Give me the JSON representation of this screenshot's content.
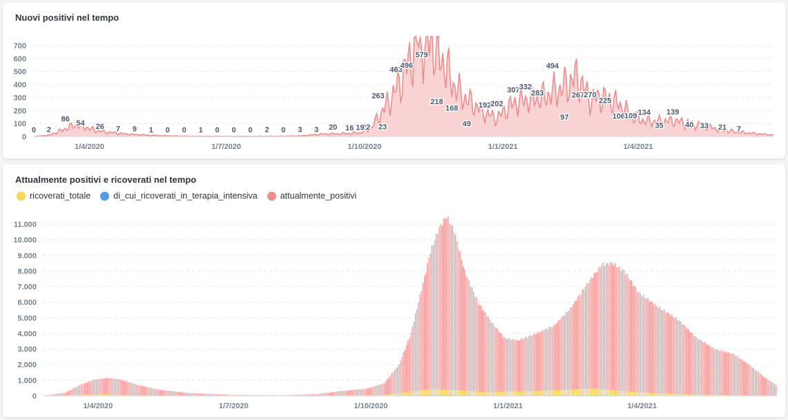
{
  "colors": {
    "ricoverati": "#f9d45c",
    "terapia": "#509ee3",
    "positivi": "#ef8c8c",
    "positivi_fill": "#f9d3d3",
    "grid": "#e8eaed"
  },
  "chart_data": [
    {
      "type": "area",
      "title": "Nuovi positivi nel tempo",
      "x_range": [
        "2020-02-24",
        "2021-06-30"
      ],
      "ylim": [
        0,
        700
      ],
      "y_ticks": [
        "0",
        "100",
        "200",
        "300",
        "400",
        "500",
        "600",
        "700"
      ],
      "x_ticks": [
        "1/4/2020",
        "1/7/2020",
        "1/10/2020",
        "1/1/2021",
        "1/4/2021"
      ],
      "grid": true,
      "series": [
        {
          "keypoints": [
            [
              "2020-02-24",
              0
            ],
            [
              "2020-03-05",
              10
            ],
            [
              "2020-03-12",
              40
            ],
            [
              "2020-03-18",
              70
            ],
            [
              "2020-03-22",
              86
            ],
            [
              "2020-03-27",
              85
            ],
            [
              "2020-04-01",
              60
            ],
            [
              "2020-04-08",
              40
            ],
            [
              "2020-04-20",
              25
            ],
            [
              "2020-05-01",
              15
            ],
            [
              "2020-05-20",
              6
            ],
            [
              "2020-06-10",
              2
            ],
            [
              "2020-07-15",
              1
            ],
            [
              "2020-08-05",
              2
            ],
            [
              "2020-08-20",
              5
            ],
            [
              "2020-09-01",
              18
            ],
            [
              "2020-09-15",
              22
            ],
            [
              "2020-09-28",
              28
            ],
            [
              "2020-10-05",
              60
            ],
            [
              "2020-10-12",
              180
            ],
            [
              "2020-10-19",
              300
            ],
            [
              "2020-10-26",
              450
            ],
            [
              "2020-11-01",
              620
            ],
            [
              "2020-11-05",
              740
            ],
            [
              "2020-11-10",
              700
            ],
            [
              "2020-11-14",
              760
            ],
            [
              "2020-11-18",
              650
            ],
            [
              "2020-11-23",
              560
            ],
            [
              "2020-11-28",
              420
            ],
            [
              "2020-12-04",
              320
            ],
            [
              "2020-12-12",
              250
            ],
            [
              "2020-12-20",
              180
            ],
            [
              "2020-12-28",
              140
            ],
            [
              "2021-01-05",
              230
            ],
            [
              "2021-01-12",
              270
            ],
            [
              "2021-01-20",
              290
            ],
            [
              "2021-01-27",
              300
            ],
            [
              "2021-02-03",
              340
            ],
            [
              "2021-02-08",
              360
            ],
            [
              "2021-02-15",
              420
            ],
            [
              "2021-02-20",
              460
            ],
            [
              "2021-02-26",
              320
            ],
            [
              "2021-03-01",
              280
            ],
            [
              "2021-03-07",
              300
            ],
            [
              "2021-03-14",
              280
            ],
            [
              "2021-03-21",
              230
            ],
            [
              "2021-03-28",
              150
            ],
            [
              "2021-04-05",
              120
            ],
            [
              "2021-04-15",
              115
            ],
            [
              "2021-04-25",
              120
            ],
            [
              "2021-05-05",
              100
            ],
            [
              "2021-05-15",
              80
            ],
            [
              "2021-05-25",
              55
            ],
            [
              "2021-06-05",
              35
            ],
            [
              "2021-06-15",
              25
            ],
            [
              "2021-06-30",
              12
            ]
          ]
        }
      ],
      "data_labels": [
        {
          "x": "2020-02-24",
          "v": 0,
          "t": "0"
        },
        {
          "x": "2020-03-05",
          "v": 2,
          "t": "2"
        },
        {
          "x": "2020-03-16",
          "v": 86,
          "t": "86"
        },
        {
          "x": "2020-03-26",
          "v": 54,
          "t": "54"
        },
        {
          "x": "2020-04-08",
          "v": 26,
          "t": "26"
        },
        {
          "x": "2020-04-20",
          "v": 7,
          "t": "7"
        },
        {
          "x": "2020-05-01",
          "v": 9,
          "t": "9"
        },
        {
          "x": "2020-05-12",
          "v": 1,
          "t": "1"
        },
        {
          "x": "2020-05-23",
          "v": 0,
          "t": "0"
        },
        {
          "x": "2020-06-03",
          "v": 0,
          "t": "0"
        },
        {
          "x": "2020-06-14",
          "v": 1,
          "t": "1"
        },
        {
          "x": "2020-06-25",
          "v": 0,
          "t": "0"
        },
        {
          "x": "2020-07-06",
          "v": 0,
          "t": "0"
        },
        {
          "x": "2020-07-17",
          "v": 0,
          "t": "0"
        },
        {
          "x": "2020-07-28",
          "v": 2,
          "t": "2"
        },
        {
          "x": "2020-08-08",
          "v": 0,
          "t": "0"
        },
        {
          "x": "2020-08-19",
          "v": 3,
          "t": "3"
        },
        {
          "x": "2020-08-30",
          "v": 3,
          "t": "3"
        },
        {
          "x": "2020-09-10",
          "v": 20,
          "t": "20"
        },
        {
          "x": "2020-09-21",
          "v": 16,
          "t": "16"
        },
        {
          "x": "2020-10-02",
          "v": 22,
          "t": "22"
        },
        {
          "x": "2020-10-13",
          "v": 23,
          "t": "23"
        },
        {
          "x": "2020-09-28",
          "v": 19,
          "t": "19"
        },
        {
          "x": "2020-10-10",
          "v": 263,
          "t": "263"
        },
        {
          "x": "2020-10-22",
          "v": 463,
          "t": "463"
        },
        {
          "x": "2020-10-29",
          "v": 496,
          "t": "496"
        },
        {
          "x": "2020-11-08",
          "v": 579,
          "t": "579"
        },
        {
          "x": "2020-11-18",
          "v": 218,
          "t": "218"
        },
        {
          "x": "2020-11-28",
          "v": 168,
          "t": "168"
        },
        {
          "x": "2020-12-08",
          "v": 49,
          "t": "49"
        },
        {
          "x": "2020-12-20",
          "v": 192,
          "t": "192"
        },
        {
          "x": "2020-12-28",
          "v": 202,
          "t": "202"
        },
        {
          "x": "2021-01-08",
          "v": 307,
          "t": "307"
        },
        {
          "x": "2021-01-16",
          "v": 332,
          "t": "332"
        },
        {
          "x": "2021-01-24",
          "v": 283,
          "t": "283"
        },
        {
          "x": "2021-02-03",
          "v": 494,
          "t": "494"
        },
        {
          "x": "2021-02-11",
          "v": 97,
          "t": "97"
        },
        {
          "x": "2021-02-20",
          "v": 267,
          "t": "267"
        },
        {
          "x": "2021-02-28",
          "v": 270,
          "t": "270"
        },
        {
          "x": "2021-03-10",
          "v": 225,
          "t": "225"
        },
        {
          "x": "2021-03-19",
          "v": 106,
          "t": "106"
        },
        {
          "x": "2021-03-27",
          "v": 109,
          "t": "109"
        },
        {
          "x": "2021-04-05",
          "v": 134,
          "t": "134"
        },
        {
          "x": "2021-04-15",
          "v": 35,
          "t": "35"
        },
        {
          "x": "2021-04-24",
          "v": 139,
          "t": "139"
        },
        {
          "x": "2021-05-05",
          "v": 40,
          "t": "40"
        },
        {
          "x": "2021-05-15",
          "v": 33,
          "t": "33"
        },
        {
          "x": "2021-05-27",
          "v": 21,
          "t": "21"
        },
        {
          "x": "2021-06-07",
          "v": 7,
          "t": "7"
        }
      ]
    },
    {
      "type": "bar",
      "title": "Attualmente positivi e ricoverati nel tempo",
      "x_range": [
        "2020-02-24",
        "2021-06-30"
      ],
      "ylim": [
        0,
        11500
      ],
      "y_ticks": [
        "0",
        "1.000",
        "2.000",
        "3.000",
        "4.000",
        "5.000",
        "6.000",
        "7.000",
        "8.000",
        "9.000",
        "10.000",
        "11.000"
      ],
      "x_ticks": [
        "1/4/2020",
        "1/7/2020",
        "1/10/2020",
        "1/1/2021",
        "1/4/2021"
      ],
      "legend_position": "top-left",
      "grid": true,
      "series": [
        {
          "name": "ricoverati_totale",
          "keypoints": [
            [
              "2020-02-24",
              0
            ],
            [
              "2020-03-20",
              60
            ],
            [
              "2020-04-05",
              90
            ],
            [
              "2020-05-01",
              30
            ],
            [
              "2020-06-01",
              5
            ],
            [
              "2020-09-01",
              5
            ],
            [
              "2020-10-10",
              60
            ],
            [
              "2020-10-25",
              250
            ],
            [
              "2020-11-10",
              420
            ],
            [
              "2020-11-25",
              380
            ],
            [
              "2020-12-15",
              250
            ],
            [
              "2021-01-15",
              300
            ],
            [
              "2021-02-15",
              420
            ],
            [
              "2021-03-01",
              480
            ],
            [
              "2021-03-20",
              300
            ],
            [
              "2021-04-15",
              150
            ],
            [
              "2021-05-15",
              60
            ],
            [
              "2021-06-30",
              20
            ]
          ]
        },
        {
          "name": "di_cui_ricoverati_in_terapia_intensiva",
          "keypoints": [
            [
              "2020-02-24",
              0
            ],
            [
              "2020-03-28",
              15
            ],
            [
              "2020-05-01",
              3
            ],
            [
              "2020-09-15",
              2
            ],
            [
              "2020-11-12",
              45
            ],
            [
              "2020-12-20",
              25
            ],
            [
              "2021-02-28",
              40
            ],
            [
              "2021-04-15",
              20
            ],
            [
              "2021-06-30",
              3
            ]
          ]
        },
        {
          "name": "attualmente_positivi",
          "keypoints": [
            [
              "2020-02-24",
              0
            ],
            [
              "2020-03-10",
              200
            ],
            [
              "2020-03-20",
              700
            ],
            [
              "2020-03-30",
              1050
            ],
            [
              "2020-04-08",
              1150
            ],
            [
              "2020-04-16",
              1050
            ],
            [
              "2020-04-28",
              700
            ],
            [
              "2020-05-12",
              400
            ],
            [
              "2020-06-01",
              180
            ],
            [
              "2020-07-01",
              60
            ],
            [
              "2020-08-01",
              40
            ],
            [
              "2020-08-25",
              100
            ],
            [
              "2020-09-10",
              300
            ],
            [
              "2020-09-28",
              450
            ],
            [
              "2020-10-10",
              800
            ],
            [
              "2020-10-20",
              2000
            ],
            [
              "2020-10-28",
              4000
            ],
            [
              "2020-11-04",
              6800
            ],
            [
              "2020-11-10",
              9200
            ],
            [
              "2020-11-16",
              10800
            ],
            [
              "2020-11-21",
              11500
            ],
            [
              "2020-11-26",
              10600
            ],
            [
              "2020-12-03",
              8000
            ],
            [
              "2020-12-12",
              6000
            ],
            [
              "2020-12-22",
              4600
            ],
            [
              "2020-12-30",
              3700
            ],
            [
              "2021-01-08",
              3550
            ],
            [
              "2021-01-20",
              4000
            ],
            [
              "2021-02-01",
              4500
            ],
            [
              "2021-02-12",
              5600
            ],
            [
              "2021-02-24",
              7300
            ],
            [
              "2021-03-05",
              8400
            ],
            [
              "2021-03-12",
              8500
            ],
            [
              "2021-03-20",
              8000
            ],
            [
              "2021-03-30",
              6600
            ],
            [
              "2021-04-12",
              5700
            ],
            [
              "2021-04-25",
              4900
            ],
            [
              "2021-05-08",
              3700
            ],
            [
              "2021-05-20",
              3000
            ],
            [
              "2021-06-01",
              2700
            ],
            [
              "2021-06-12",
              2000
            ],
            [
              "2021-06-22",
              1200
            ],
            [
              "2021-06-30",
              700
            ]
          ]
        }
      ]
    }
  ]
}
